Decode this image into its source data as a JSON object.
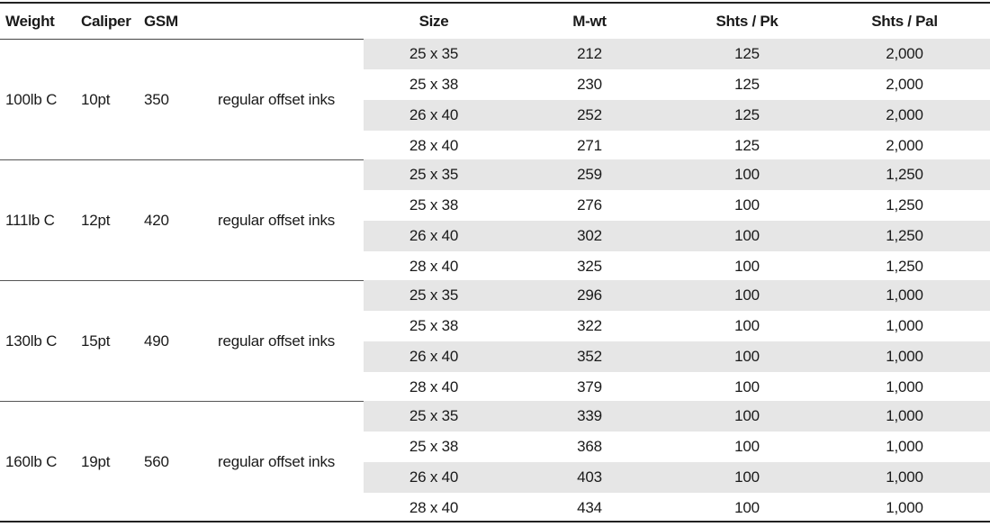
{
  "headers": {
    "weight": "Weight",
    "caliper": "Caliper",
    "gsm": "GSM",
    "ink": "",
    "size": "Size",
    "mwt": "M-wt",
    "shts_pk": "Shts / Pk",
    "shts_pal": "Shts / Pal"
  },
  "groups": [
    {
      "weight": "100lb C",
      "caliper": "10pt",
      "gsm": "350",
      "ink": "regular offset inks",
      "rows": [
        {
          "size": "25 x 35",
          "mwt": "212",
          "shts_pk": "125",
          "shts_pal": "2,000"
        },
        {
          "size": "25 x 38",
          "mwt": "230",
          "shts_pk": "125",
          "shts_pal": "2,000"
        },
        {
          "size": "26 x 40",
          "mwt": "252",
          "shts_pk": "125",
          "shts_pal": "2,000"
        },
        {
          "size": "28 x 40",
          "mwt": "271",
          "shts_pk": "125",
          "shts_pal": "2,000"
        }
      ]
    },
    {
      "weight": "111lb C",
      "caliper": "12pt",
      "gsm": "420",
      "ink": "regular offset inks",
      "rows": [
        {
          "size": "25 x 35",
          "mwt": "259",
          "shts_pk": "100",
          "shts_pal": "1,250"
        },
        {
          "size": "25 x 38",
          "mwt": "276",
          "shts_pk": "100",
          "shts_pal": "1,250"
        },
        {
          "size": "26 x 40",
          "mwt": "302",
          "shts_pk": "100",
          "shts_pal": "1,250"
        },
        {
          "size": "28 x 40",
          "mwt": "325",
          "shts_pk": "100",
          "shts_pal": "1,250"
        }
      ]
    },
    {
      "weight": "130lb C",
      "caliper": "15pt",
      "gsm": "490",
      "ink": "regular offset inks",
      "rows": [
        {
          "size": "25 x 35",
          "mwt": "296",
          "shts_pk": "100",
          "shts_pal": "1,000"
        },
        {
          "size": "25 x 38",
          "mwt": "322",
          "shts_pk": "100",
          "shts_pal": "1,000"
        },
        {
          "size": "26 x 40",
          "mwt": "352",
          "shts_pk": "100",
          "shts_pal": "1,000"
        },
        {
          "size": "28 x 40",
          "mwt": "379",
          "shts_pk": "100",
          "shts_pal": "1,000"
        }
      ]
    },
    {
      "weight": "160lb C",
      "caliper": "19pt",
      "gsm": "560",
      "ink": "regular offset inks",
      "rows": [
        {
          "size": "25 x 35",
          "mwt": "339",
          "shts_pk": "100",
          "shts_pal": "1,000"
        },
        {
          "size": "25 x 38",
          "mwt": "368",
          "shts_pk": "100",
          "shts_pal": "1,000"
        },
        {
          "size": "26 x 40",
          "mwt": "403",
          "shts_pk": "100",
          "shts_pal": "1,000"
        },
        {
          "size": "28 x 40",
          "mwt": "434",
          "shts_pk": "100",
          "shts_pal": "1,000"
        }
      ]
    }
  ],
  "colors": {
    "shaded_row": "#e6e6e6",
    "text": "#1a1a1a",
    "rule": "#222222"
  }
}
